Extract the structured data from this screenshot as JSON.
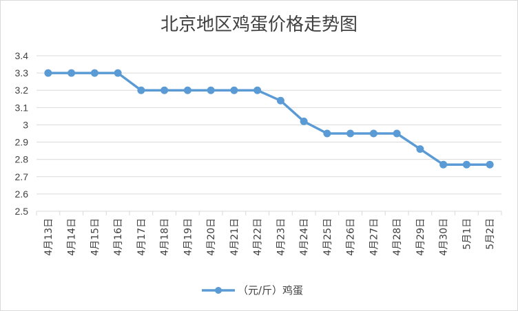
{
  "chart_data": {
    "type": "line",
    "title": "北京地区鸡蛋价格走势图",
    "categories": [
      "4月13日",
      "4月14日",
      "4月15日",
      "4月16日",
      "4月17日",
      "4月18日",
      "4月19日",
      "4月20日",
      "4月21日",
      "4月22日",
      "4月23日",
      "4月24日",
      "4月25日",
      "4月26日",
      "4月27日",
      "4月28日",
      "4月29日",
      "4月30日",
      "5月1日",
      "5月2日"
    ],
    "series": [
      {
        "name": "（元/斤）鸡蛋",
        "values": [
          3.3,
          3.3,
          3.3,
          3.3,
          3.2,
          3.2,
          3.2,
          3.2,
          3.2,
          3.2,
          3.14,
          3.02,
          2.95,
          2.95,
          2.95,
          2.95,
          2.86,
          2.77,
          2.77,
          2.77
        ]
      }
    ],
    "yticks": [
      "2.5",
      "2.6",
      "2.7",
      "2.8",
      "2.9",
      "3",
      "3.1",
      "3.2",
      "3.3",
      "3.4"
    ],
    "ylim": [
      2.5,
      3.4
    ],
    "grid": true,
    "legend_position": "bottom",
    "line_color": "#5B9BD5",
    "grid_color": "#d9d9d9"
  }
}
